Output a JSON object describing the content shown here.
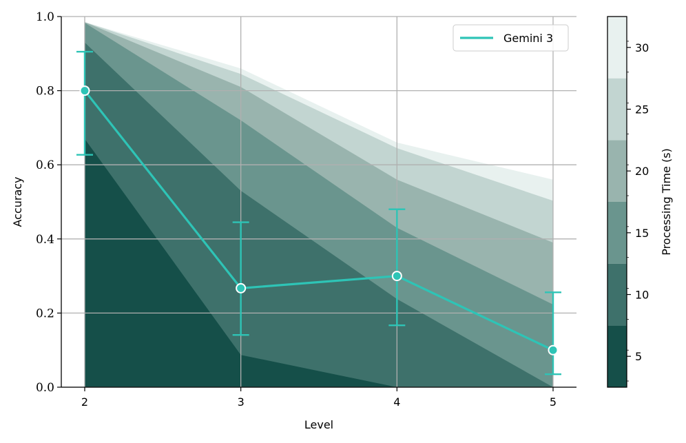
{
  "chart_data": {
    "type": "line",
    "xlabel": "Level",
    "ylabel": "Accuracy",
    "x_ticks": [
      2,
      3,
      4,
      5
    ],
    "x_tick_labels": [
      "2",
      "3",
      "4",
      "5"
    ],
    "y_ticks": [
      0.0,
      0.2,
      0.4,
      0.6,
      0.8,
      1.0
    ],
    "y_tick_labels": [
      "0.0",
      "0.2",
      "0.4",
      "0.6",
      "0.8",
      "1.0"
    ],
    "xlim": [
      1.85,
      5.15
    ],
    "ylim": [
      0.0,
      1.0
    ],
    "grid": true,
    "legend_position": "top-right",
    "series": [
      {
        "name": "Gemini 3",
        "color": "#2ec4b6",
        "x": [
          2,
          3,
          4,
          5
        ],
        "y": [
          0.8,
          0.267,
          0.3,
          0.1
        ],
        "error_low": [
          0.627,
          0.141,
          0.167,
          0.035
        ],
        "error_high": [
          0.905,
          0.445,
          0.48,
          0.256
        ]
      }
    ],
    "filled_bands": {
      "x": [
        2,
        3,
        4,
        5
      ],
      "levels": [
        {
          "time": 5,
          "color": "#154f49",
          "y": [
            0.67,
            0.087,
            0.0,
            0.0
          ]
        },
        {
          "time": 10,
          "color": "#3e716b",
          "y": [
            0.93,
            0.53,
            0.238,
            0.0
          ]
        },
        {
          "time": 15,
          "color": "#6a958e",
          "y": [
            0.983,
            0.72,
            0.43,
            0.223
          ]
        },
        {
          "time": 20,
          "color": "#99b4ae",
          "y": [
            0.985,
            0.81,
            0.56,
            0.39
          ]
        },
        {
          "time": 25,
          "color": "#c2d5d1",
          "y": [
            0.985,
            0.845,
            0.645,
            0.503
          ]
        },
        {
          "time": 30,
          "color": "#e8f1ef",
          "y": [
            0.985,
            0.86,
            0.66,
            0.56
          ]
        }
      ]
    },
    "colorbar": {
      "label": "Processing Time (s)",
      "range": [
        2.5,
        32.5
      ],
      "ticks": [
        5,
        10,
        15,
        20,
        25,
        30
      ],
      "tick_labels": [
        "5",
        "10",
        "15",
        "20",
        "25",
        "30"
      ],
      "segments": [
        {
          "from": 2.5,
          "to": 7.5,
          "color": "#154f49"
        },
        {
          "from": 7.5,
          "to": 12.5,
          "color": "#3e716b"
        },
        {
          "from": 12.5,
          "to": 17.5,
          "color": "#6a958e"
        },
        {
          "from": 17.5,
          "to": 22.5,
          "color": "#99b4ae"
        },
        {
          "from": 22.5,
          "to": 27.5,
          "color": "#c2d5d1"
        },
        {
          "from": 27.5,
          "to": 32.5,
          "color": "#e8f1ef"
        }
      ]
    }
  }
}
